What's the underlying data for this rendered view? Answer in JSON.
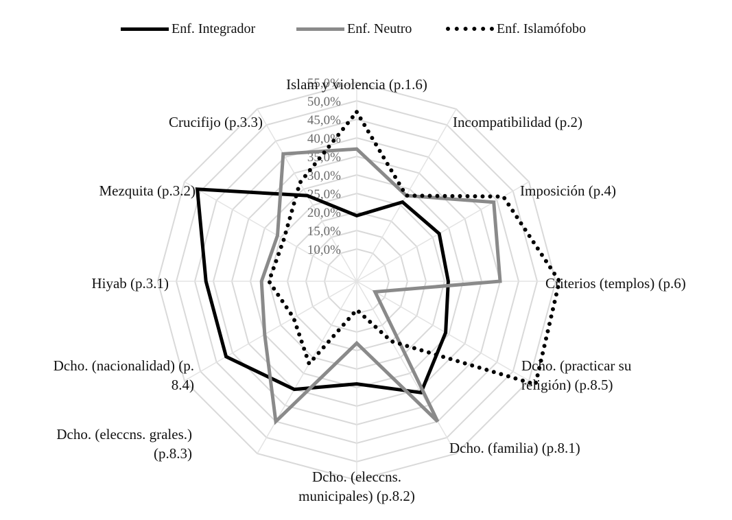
{
  "chart_data": {
    "type": "radar",
    "axes": [
      "Islam y violencia (p.1.6)",
      "Incompatibilidad (p.2)",
      "Imposición (p.4)",
      "Criterios (templos) (p.6)",
      "Dcho. (practicar su religión) (p.8.5)",
      "Dcho. (familia) (p.8.1)",
      "Dcho. (eleccns. municipales) (p.8.2)",
      "Dcho. (eleccns. grales.) (p.8.3)",
      "Dcho. (nacionalidad) (p. 8.4)",
      "Hiyab (p.3.1)",
      "Mezquita (p.3.2)",
      "Crucifijo (p.3.3)"
    ],
    "axis_label_lines": [
      [
        "Islam y violencia (p.1.6)"
      ],
      [
        "Incompatibilidad (p.2)"
      ],
      [
        "Imposición (p.4)"
      ],
      [
        "Criterios (templos) (p.6)"
      ],
      [
        "Dcho. (practicar su",
        "religión) (p.8.5)"
      ],
      [
        "Dcho. (familia) (p.8.1)"
      ],
      [
        "Dcho. (eleccns.",
        "municipales) (p.8.2)"
      ],
      [
        "Dcho. (eleccns. grales.)",
        "(p.8.3)"
      ],
      [
        "Dcho. (nacionalidad) (p.",
        "8.4)"
      ],
      [
        "Hiyab (p.3.1)"
      ],
      [
        "Mezquita (p.3.2)"
      ],
      [
        "Crucifijo (p.3.3)"
      ]
    ],
    "tick_labels": [
      "10,0%",
      "15,0%",
      "20,0%",
      "25,0%",
      "30,0%",
      "35,0%",
      "40,0%",
      "45,0%",
      "50,0%",
      "55,0%"
    ],
    "ticks": [
      10,
      15,
      20,
      25,
      30,
      35,
      40,
      45,
      50,
      55
    ],
    "rmin": 5,
    "rmax": 55,
    "grid": true,
    "legend_position": "top",
    "series": [
      {
        "name": "Enf. Integrador",
        "values": [
          19,
          26,
          27,
          26,
          29,
          36,
          29,
          35,
          42,
          42,
          51,
          28
        ],
        "color": "#000000",
        "style": "solid"
      },
      {
        "name": "Enf. Neutro",
        "values": [
          37,
          28,
          44,
          40,
          7,
          45,
          18,
          45,
          30,
          27,
          26,
          41
        ],
        "color": "#8a8a8a",
        "style": "solid"
      },
      {
        "name": "Enf. Islamófobo",
        "values": [
          47,
          28,
          47,
          56,
          57,
          20,
          9,
          27,
          21,
          25,
          24,
          32
        ],
        "color": "#000000",
        "style": "dotted"
      }
    ]
  }
}
